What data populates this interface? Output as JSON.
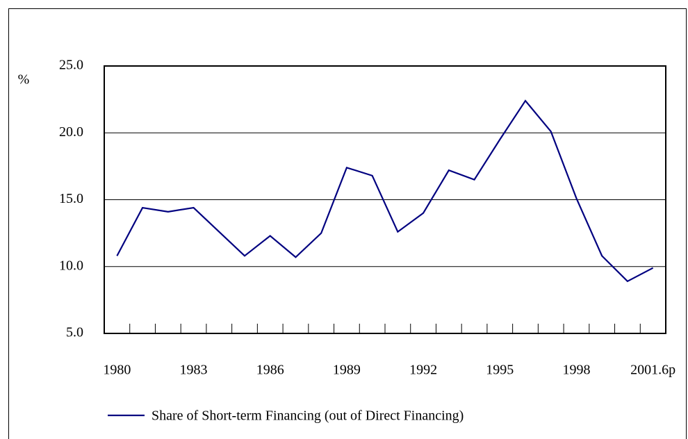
{
  "chart_data": {
    "type": "line",
    "y_label": "%",
    "categories": [
      "1980",
      null,
      null,
      "1983",
      null,
      null,
      "1986",
      null,
      null,
      "1989",
      null,
      null,
      "1992",
      null,
      null,
      "1995",
      null,
      null,
      "1998",
      null,
      null,
      "2001.6p"
    ],
    "series": [
      {
        "name": "Share of Short-term Financing (out of Direct Financing)",
        "color": "#000080",
        "values": [
          10.8,
          14.4,
          14.1,
          14.4,
          12.6,
          10.8,
          12.3,
          10.7,
          12.5,
          17.4,
          16.8,
          12.6,
          14.0,
          17.2,
          16.5,
          19.5,
          22.4,
          20.1,
          15.1,
          10.8,
          8.9,
          9.9
        ]
      }
    ],
    "ylim": [
      5,
      25
    ],
    "yticks": [
      {
        "value": 5,
        "label": "5.0"
      },
      {
        "value": 10,
        "label": "10.0"
      },
      {
        "value": 15,
        "label": "15.0"
      },
      {
        "value": 20,
        "label": "20.0"
      },
      {
        "value": 25,
        "label": "25.0"
      }
    ],
    "grid": true
  }
}
